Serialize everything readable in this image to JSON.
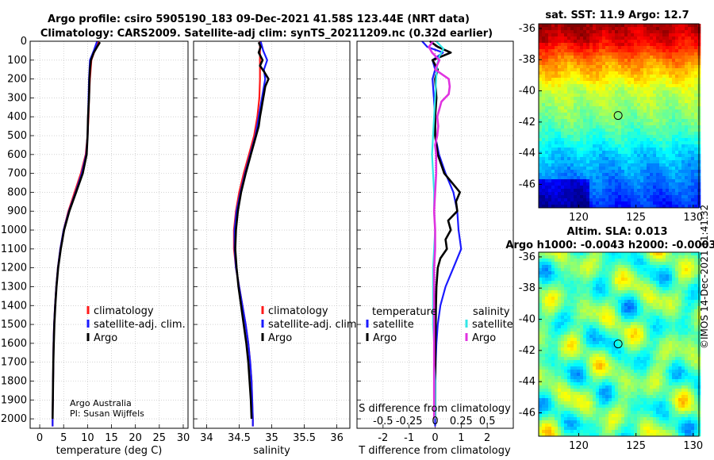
{
  "figure": {
    "title_line1": "Argo profile: csiro 5905190_183 09-Dec-2021 41.58S 123.44E (NRT data)",
    "title_line2": "Climatology: CARS2009. Satellite-adj clim: synTS_20211209.nc (0.32d earlier)",
    "credit_line1": "Argo Australia",
    "credit_line2": "PI: Susan Wijffels",
    "stamp": "©IMOS 14-Dec-2021 11:41:32"
  },
  "colors": {
    "climatology": "#ff1a1a",
    "satellite": "#1a1aff",
    "argo": "#000000",
    "sat_salinity": "#33e6e6",
    "argo_salinity": "#e033e0"
  },
  "chart_data": [
    {
      "type": "line",
      "id": "temperature",
      "xlabel": "temperature (deg C)",
      "ylabel": "",
      "xlim": [
        -2,
        31
      ],
      "ylim": [
        2050,
        0
      ],
      "xticks": [
        0,
        5,
        10,
        15,
        20,
        25,
        30
      ],
      "xtick_labels": [
        "0",
        "5",
        "10",
        "15",
        "20",
        "25",
        "30"
      ],
      "yticks": [
        0,
        100,
        200,
        300,
        400,
        500,
        600,
        700,
        800,
        900,
        1000,
        1100,
        1200,
        1300,
        1400,
        1500,
        1600,
        1700,
        1800,
        1900,
        2000
      ],
      "ytick_labels": [
        "0",
        "100",
        "200",
        "300",
        "400",
        "500",
        "600",
        "700",
        "800",
        "900",
        "1000",
        "1100",
        "1200",
        "1300",
        "1400",
        "1500",
        "1600",
        "1700",
        "1800",
        "1900",
        "2000"
      ],
      "grid": true,
      "legend": [
        "climatology",
        "satellite-adj. clim.",
        "Argo"
      ],
      "series": [
        {
          "name": "climatology",
          "color_key": "climatology",
          "depth": [
            0,
            50,
            100,
            200,
            300,
            400,
            500,
            600,
            700,
            800,
            900,
            1000,
            1100,
            1200,
            1300,
            1400,
            1500,
            1600,
            1700,
            1800,
            1900,
            2000,
            2040
          ],
          "values": [
            12.3,
            11.5,
            10.8,
            10.5,
            10.3,
            10.2,
            10.0,
            9.6,
            8.6,
            7.3,
            6.0,
            5.0,
            4.3,
            3.8,
            3.45,
            3.2,
            3.0,
            2.9,
            2.85,
            2.8,
            2.75,
            2.7,
            2.7
          ]
        },
        {
          "name": "satellite-adj. clim.",
          "color_key": "satellite",
          "depth": [
            0,
            50,
            100,
            200,
            300,
            400,
            500,
            600,
            700,
            800,
            900,
            1000,
            1100,
            1200,
            1300,
            1400,
            1500,
            1600,
            1700,
            1800,
            1900,
            2000,
            2040
          ],
          "values": [
            12.0,
            11.3,
            10.5,
            10.3,
            10.2,
            10.1,
            10.0,
            9.7,
            8.8,
            7.5,
            6.1,
            5.0,
            4.3,
            3.8,
            3.45,
            3.2,
            3.0,
            2.9,
            2.85,
            2.8,
            2.75,
            2.7,
            2.7
          ]
        },
        {
          "name": "Argo",
          "color_key": "argo",
          "depth": [
            5,
            30,
            60,
            100,
            150,
            200,
            300,
            400,
            500,
            600,
            700,
            800,
            900,
            1000,
            1100,
            1200,
            1300,
            1400,
            1500,
            1600,
            1700,
            1800,
            1900,
            2000
          ],
          "values": [
            12.6,
            12.0,
            11.3,
            10.7,
            10.5,
            10.4,
            10.3,
            10.1,
            10.0,
            9.8,
            9.0,
            7.6,
            6.2,
            5.1,
            4.4,
            3.85,
            3.5,
            3.25,
            3.05,
            2.95,
            2.85,
            2.8,
            2.75,
            2.7
          ]
        }
      ],
      "legend_labels": [
        "climatology",
        "satellite-adj. clim.",
        "Argo"
      ]
    },
    {
      "type": "line",
      "id": "salinity",
      "xlabel": "salinity",
      "xlim": [
        33.8,
        36.2
      ],
      "ylim": [
        2050,
        0
      ],
      "xticks": [
        34,
        34.5,
        35,
        35.5,
        36
      ],
      "xtick_labels": [
        "34",
        "34.5",
        "35",
        "35.5",
        "36"
      ],
      "grid": true,
      "series": [
        {
          "name": "climatology",
          "color_key": "climatology",
          "depth": [
            0,
            100,
            200,
            300,
            400,
            500,
            600,
            700,
            800,
            900,
            1000,
            1100,
            1200,
            1300,
            1400,
            1500,
            1600,
            1700,
            1800,
            1900,
            2000,
            2040
          ],
          "values": [
            34.82,
            34.82,
            34.82,
            34.81,
            34.78,
            34.73,
            34.65,
            34.57,
            34.5,
            34.45,
            34.42,
            34.42,
            34.45,
            34.5,
            34.55,
            34.6,
            34.64,
            34.67,
            34.69,
            34.7,
            34.71,
            34.71
          ]
        },
        {
          "name": "satellite-adj. clim.",
          "color_key": "satellite",
          "depth": [
            0,
            50,
            100,
            150,
            200,
            300,
            400,
            500,
            600,
            700,
            800,
            900,
            1000,
            1100,
            1200,
            1300,
            1400,
            1500,
            1600,
            1700,
            1800,
            1900,
            2000,
            2040
          ],
          "values": [
            34.83,
            34.87,
            34.93,
            34.88,
            34.9,
            34.85,
            34.8,
            34.75,
            34.67,
            34.59,
            34.52,
            34.46,
            34.43,
            34.43,
            34.45,
            34.5,
            34.55,
            34.6,
            34.64,
            34.67,
            34.69,
            34.7,
            34.71,
            34.71
          ]
        },
        {
          "name": "Argo",
          "color_key": "argo",
          "depth": [
            5,
            30,
            60,
            100,
            130,
            160,
            200,
            240,
            280,
            320,
            360,
            400,
            450,
            500,
            550,
            600,
            700,
            800,
            900,
            1000,
            1100,
            1200,
            1300,
            1400,
            1500,
            1600,
            1700,
            1800,
            1900,
            2000
          ],
          "values": [
            34.8,
            34.83,
            34.8,
            34.86,
            34.82,
            34.88,
            34.95,
            34.9,
            34.88,
            34.86,
            34.84,
            34.82,
            34.8,
            34.76,
            34.72,
            34.68,
            34.6,
            34.53,
            34.48,
            34.45,
            34.44,
            34.46,
            34.49,
            34.53,
            34.57,
            34.61,
            34.64,
            34.66,
            34.68,
            34.69
          ]
        }
      ],
      "legend_labels": [
        "climatology",
        "satellite-adj. clim.",
        "Argo"
      ]
    },
    {
      "type": "line",
      "id": "differences",
      "xlabel": "T difference from climatology",
      "xlabel_top": "S difference from climatology",
      "xlim": [
        -3,
        3
      ],
      "ylim": [
        2050,
        0
      ],
      "xticks": [
        -2,
        -1,
        0,
        1,
        2
      ],
      "xtick_labels": [
        "-2",
        "-1",
        "0",
        "1",
        "2"
      ],
      "xticks_top_values": [
        -0.5,
        -0.25,
        0,
        0.25,
        0.5
      ],
      "xticks_top": [
        "-0.5",
        "-0.25",
        "0",
        "0.25",
        "0.5"
      ],
      "s_scale": 4,
      "grid": true,
      "legend_group_titles": [
        "temperature",
        "salinity"
      ],
      "legend_labels": [
        "satellite",
        "Argo",
        "satellite",
        "Argo"
      ],
      "series": [
        {
          "name": "temperature satellite",
          "color_key": "satellite",
          "depth": [
            0,
            30,
            60,
            100,
            150,
            200,
            300,
            400,
            500,
            600,
            700,
            800,
            900,
            1000,
            1100,
            1200,
            1300,
            1400,
            1500,
            1600,
            1700,
            1800,
            1900,
            2000,
            2040
          ],
          "values": [
            -0.5,
            -0.3,
            0.3,
            -0.1,
            0.0,
            -0.1,
            -0.05,
            0.0,
            0.0,
            0.15,
            0.4,
            0.7,
            0.85,
            0.9,
            1.0,
            0.7,
            0.4,
            0.2,
            0.1,
            0.05,
            0.02,
            0.01,
            0.0,
            0.0,
            0.0
          ]
        },
        {
          "name": "temperature Argo",
          "color_key": "argo",
          "depth": [
            0,
            30,
            60,
            100,
            150,
            200,
            300,
            400,
            500,
            600,
            700,
            800,
            850,
            900,
            950,
            1000,
            1050,
            1100,
            1150,
            1200,
            1300,
            1400,
            1500,
            1600,
            1700,
            1800,
            1900,
            2000
          ],
          "values": [
            -0.2,
            0.1,
            0.6,
            -0.1,
            0.1,
            0.0,
            0.05,
            0.0,
            0.0,
            0.1,
            0.35,
            0.95,
            0.8,
            0.85,
            0.5,
            0.6,
            0.4,
            0.45,
            0.2,
            0.1,
            0.05,
            0.03,
            0.02,
            0.01,
            0.01,
            0.0,
            0.0,
            0.0
          ]
        },
        {
          "name": "salinity satellite",
          "color_key": "sat_salinity",
          "depth": [
            0,
            40,
            80,
            120,
            200,
            300,
            400,
            500,
            600,
            700,
            800,
            900,
            1000,
            1100,
            1200,
            1300,
            1400,
            1500,
            1600,
            1700,
            1800,
            1900,
            2000
          ],
          "values": [
            0.01,
            0.08,
            0.04,
            0.02,
            0.01,
            0.0,
            -0.01,
            -0.02,
            -0.03,
            -0.02,
            -0.01,
            -0.01,
            0.0,
            -0.01,
            -0.02,
            -0.02,
            -0.02,
            -0.02,
            -0.01,
            -0.01,
            0.0,
            0.0,
            0.0
          ]
        },
        {
          "name": "salinity Argo",
          "color_key": "argo_salinity",
          "depth": [
            0,
            30,
            60,
            100,
            150,
            200,
            240,
            280,
            320,
            360,
            400,
            450,
            500,
            550,
            600,
            700,
            800,
            900,
            1000,
            1100,
            1200,
            1300,
            1400,
            1500,
            1600,
            1700,
            1800,
            1900,
            2000
          ],
          "values": [
            -0.02,
            -0.06,
            -0.03,
            0.04,
            0.0,
            0.13,
            0.14,
            0.13,
            0.06,
            0.04,
            0.02,
            0.03,
            0.02,
            0.0,
            0.01,
            0.01,
            0.0,
            -0.01,
            0.0,
            0.0,
            -0.01,
            -0.01,
            -0.01,
            -0.01,
            -0.01,
            -0.01,
            -0.01,
            -0.01,
            -0.01
          ]
        }
      ]
    },
    {
      "type": "heatmap",
      "id": "sst-map",
      "title": "sat. SST: 11.9 Argo: 12.7",
      "xlim": [
        116.5,
        130.5
      ],
      "ylim": [
        -47.5,
        -35.7
      ],
      "xticks": [
        120,
        125,
        130
      ],
      "xtick_labels": [
        "120",
        "125",
        "130"
      ],
      "yticks": [
        -36,
        -38,
        -40,
        -42,
        -44,
        -46
      ],
      "ytick_labels": [
        "-36",
        "-38",
        "-40",
        "-42",
        "-44",
        "-46"
      ],
      "marker": [
        123.44,
        -41.58
      ],
      "value_range": [
        6,
        18
      ],
      "zonal_profile": {
        "lat": [
          -35.7,
          -37,
          -38,
          -39,
          -40,
          -41,
          -42,
          -43,
          -44,
          -45,
          -46,
          -47.5
        ],
        "sst": [
          17.5,
          16.5,
          15.0,
          14.0,
          12.8,
          12.3,
          11.8,
          11.0,
          10.0,
          9.4,
          8.8,
          7.8
        ]
      }
    },
    {
      "type": "heatmap",
      "id": "sla-map",
      "title_line1": "Altim. SLA: 0.013",
      "title_line2": "Argo h1000: -0.0043 h2000: -0.0003",
      "xlim": [
        116.5,
        130.5
      ],
      "ylim": [
        -47.5,
        -35.7
      ],
      "xticks": [
        120,
        125,
        130
      ],
      "xtick_labels": [
        "120",
        "125",
        "130"
      ],
      "yticks": [
        -36,
        -38,
        -40,
        -42,
        -44,
        -46
      ],
      "ytick_labels": [
        "-36",
        "-38",
        "-40",
        "-42",
        "-44",
        "-46"
      ],
      "marker": [
        123.44,
        -41.58
      ],
      "value_range": [
        -0.3,
        0.3
      ]
    }
  ]
}
